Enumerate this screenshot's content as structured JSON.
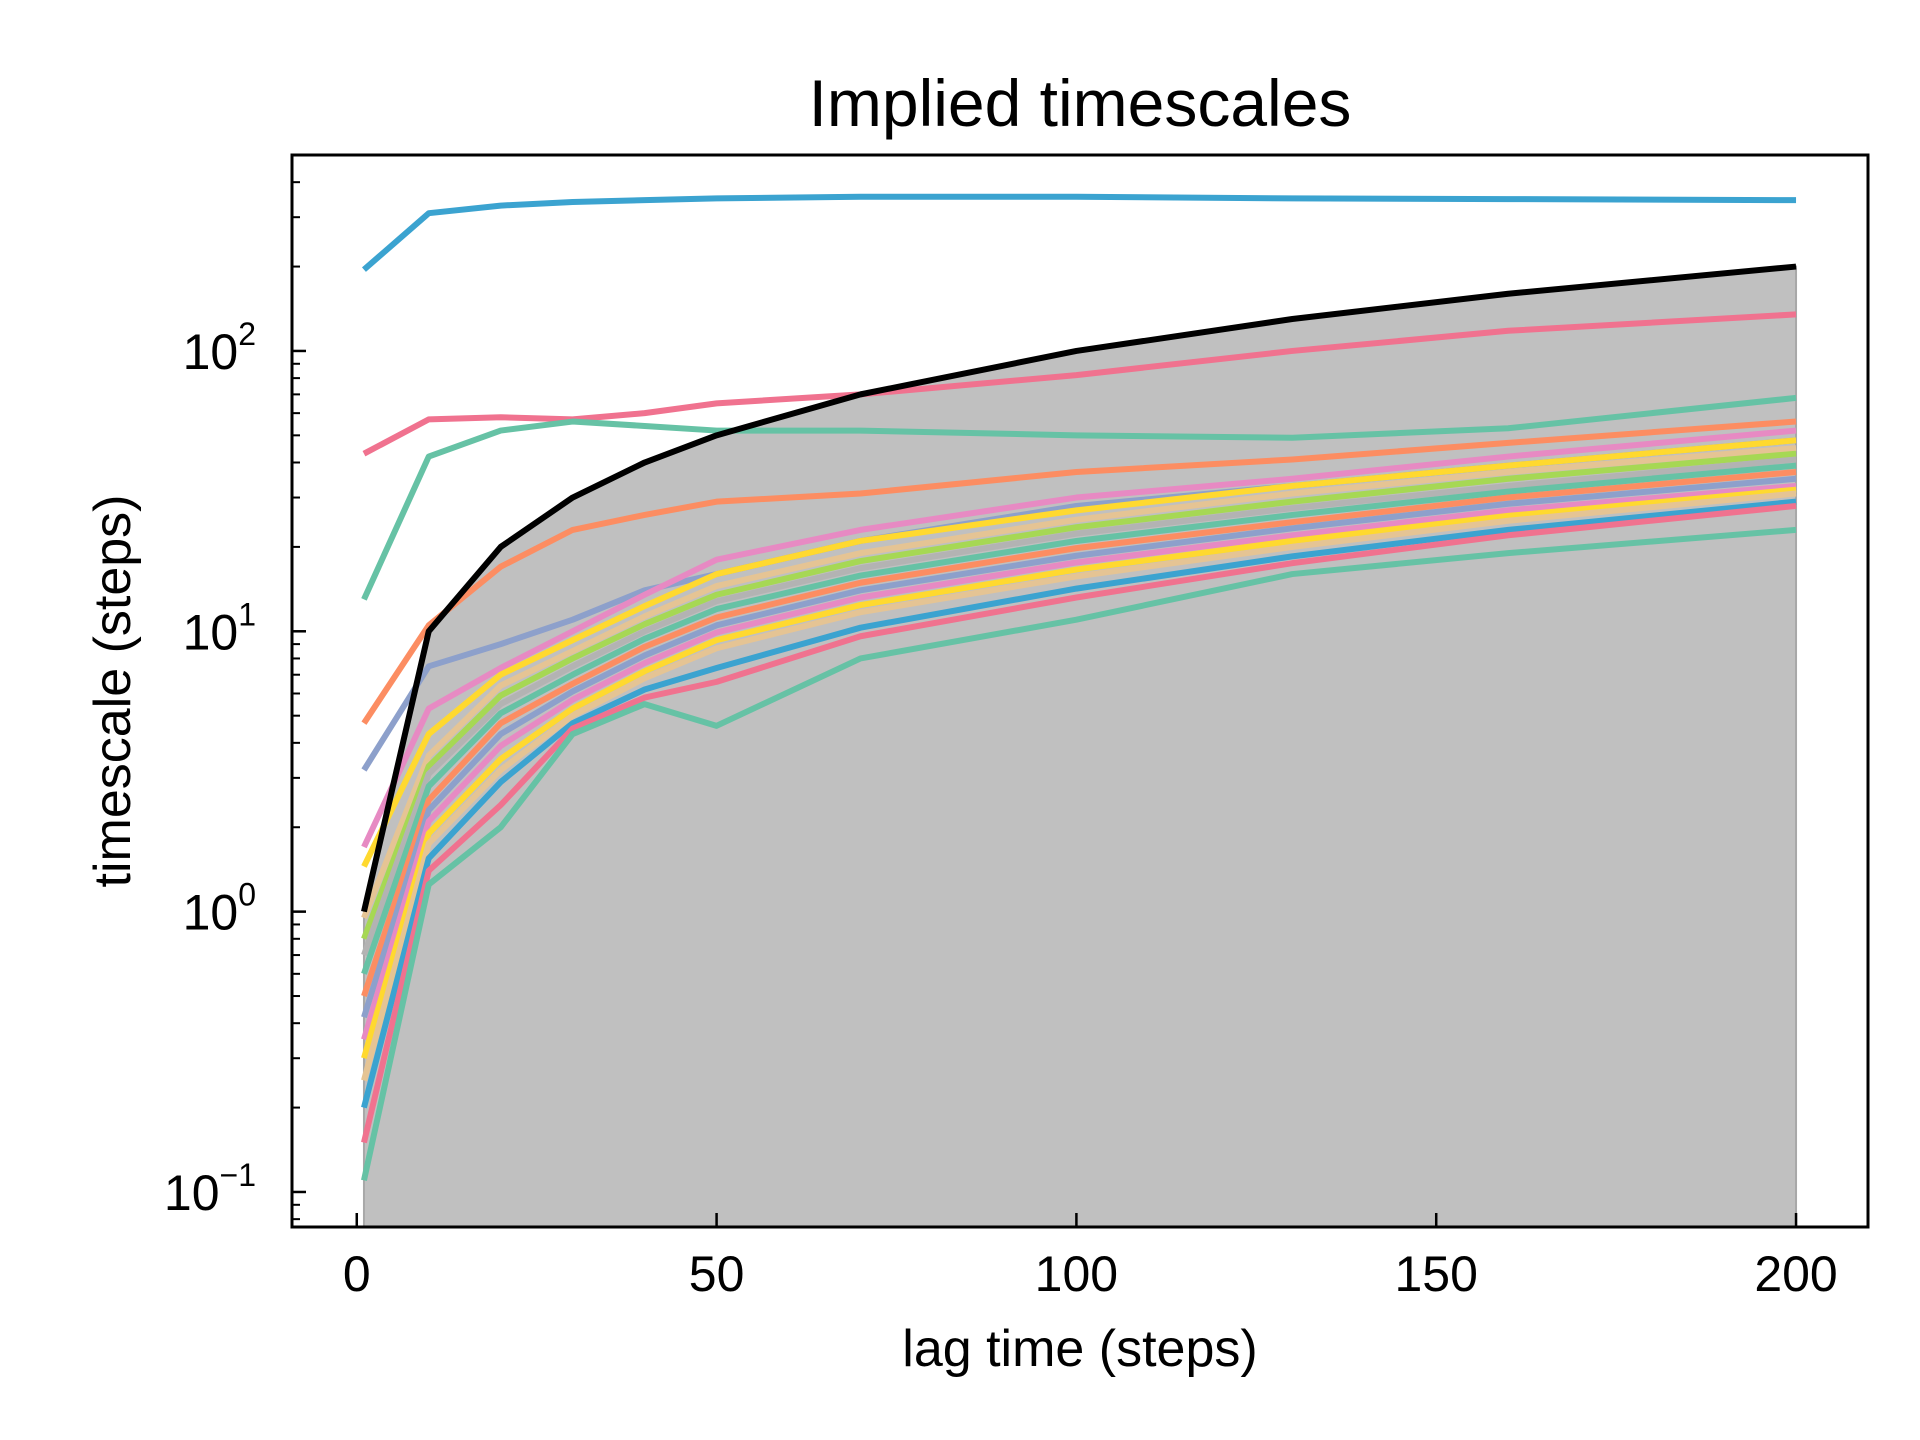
{
  "chart_data": {
    "type": "line",
    "title": "Implied timescales",
    "xlabel": "lag time (steps)",
    "ylabel": "timescale (steps)",
    "yscale": "log",
    "xlim": [
      -9,
      210
    ],
    "ylim": [
      0.075,
      500
    ],
    "grid": false,
    "legend": "none",
    "x": [
      1,
      10,
      20,
      30,
      40,
      50,
      70,
      100,
      130,
      160,
      200
    ],
    "xticks": [
      0,
      50,
      100,
      150,
      200
    ],
    "yticks": [
      {
        "value": 0.1,
        "base": "10",
        "exp": "−1"
      },
      {
        "value": 1,
        "base": "10",
        "exp": "0"
      },
      {
        "value": 10,
        "base": "10",
        "exp": "1"
      },
      {
        "value": 100,
        "base": "10",
        "exp": "2"
      }
    ],
    "lag_limit": {
      "color": "#000000",
      "fill": "#c0c0c0",
      "values": [
        1,
        10,
        20,
        30,
        40,
        50,
        70,
        100,
        130,
        160,
        200
      ]
    },
    "series": [
      {
        "color": "#3ba3d0",
        "values": [
          195,
          310,
          330,
          340,
          345,
          350,
          355,
          355,
          350,
          348,
          345
        ]
      },
      {
        "color": "#f0728f",
        "values": [
          43,
          57,
          58,
          57,
          60,
          65,
          70,
          82,
          100,
          118,
          135
        ]
      },
      {
        "color": "#66c2a5",
        "values": [
          13,
          42,
          52,
          56,
          54,
          52,
          52,
          50,
          49,
          53,
          68
        ]
      },
      {
        "color": "#fc8d62",
        "values": [
          4.7,
          10.5,
          17,
          23,
          26,
          29,
          31,
          37,
          41,
          47,
          56
        ]
      },
      {
        "color": "#8da0cb",
        "values": [
          3.2,
          7.5,
          9,
          11,
          14,
          16,
          21,
          28,
          33,
          39,
          48
        ]
      },
      {
        "color": "#e78ac3",
        "values": [
          1.7,
          5.3,
          7.4,
          10,
          13.5,
          18,
          23,
          30,
          35,
          42,
          52
        ]
      },
      {
        "color": "#ffd92f",
        "values": [
          1.45,
          4.3,
          7,
          9.3,
          12.3,
          16,
          21,
          27,
          33,
          39,
          48
        ]
      },
      {
        "color": "#e5c494",
        "values": [
          0.95,
          3.6,
          6.4,
          8.5,
          11.3,
          14.5,
          19,
          25,
          31,
          37,
          45
        ]
      },
      {
        "color": "#a6d854",
        "values": [
          0.8,
          3.3,
          5.9,
          8,
          10.6,
          13.5,
          17.8,
          23.5,
          29,
          35,
          43
        ]
      },
      {
        "color": "#b3b3b3",
        "values": [
          0.7,
          3.1,
          5.5,
          7.5,
          10,
          12.8,
          16.8,
          22.3,
          27.5,
          33,
          41
        ]
      },
      {
        "color": "#66c2a5",
        "values": [
          0.6,
          2.8,
          5.1,
          7,
          9.4,
          12,
          15.8,
          21,
          26,
          31.5,
          39
        ]
      },
      {
        "color": "#fc8d62",
        "values": [
          0.5,
          2.5,
          4.7,
          6.5,
          8.8,
          11.2,
          14.9,
          19.8,
          24.5,
          30,
          37
        ]
      },
      {
        "color": "#8da0cb",
        "values": [
          0.42,
          2.3,
          4.3,
          6.1,
          8.2,
          10.5,
          14,
          18.6,
          23.3,
          28.5,
          35
        ]
      },
      {
        "color": "#e78ac3",
        "values": [
          0.35,
          2.1,
          3.9,
          5.7,
          7.7,
          9.9,
          13.2,
          17.6,
          22,
          27,
          33
        ]
      },
      {
        "color": "#ffd92f",
        "values": [
          0.3,
          1.9,
          3.5,
          5.3,
          7.2,
          9.3,
          12.4,
          16.6,
          21,
          25.8,
          32
        ]
      },
      {
        "color": "#e5c494",
        "values": [
          0.25,
          1.75,
          3.2,
          5,
          6.8,
          8.7,
          11.7,
          15.7,
          20,
          24.8,
          31
        ]
      },
      {
        "color": "#3ba3d0",
        "values": [
          0.2,
          1.55,
          2.9,
          4.7,
          6.2,
          7.4,
          10.3,
          14.2,
          18.5,
          23,
          29
        ]
      },
      {
        "color": "#f0728f",
        "values": [
          0.15,
          1.4,
          2.4,
          4.5,
          5.8,
          6.6,
          9.6,
          13.2,
          17.5,
          22,
          28
        ]
      },
      {
        "color": "#66c2a5",
        "values": [
          0.11,
          1.25,
          2,
          4.3,
          5.5,
          4.6,
          8,
          11,
          16,
          19,
          23
        ]
      }
    ]
  }
}
